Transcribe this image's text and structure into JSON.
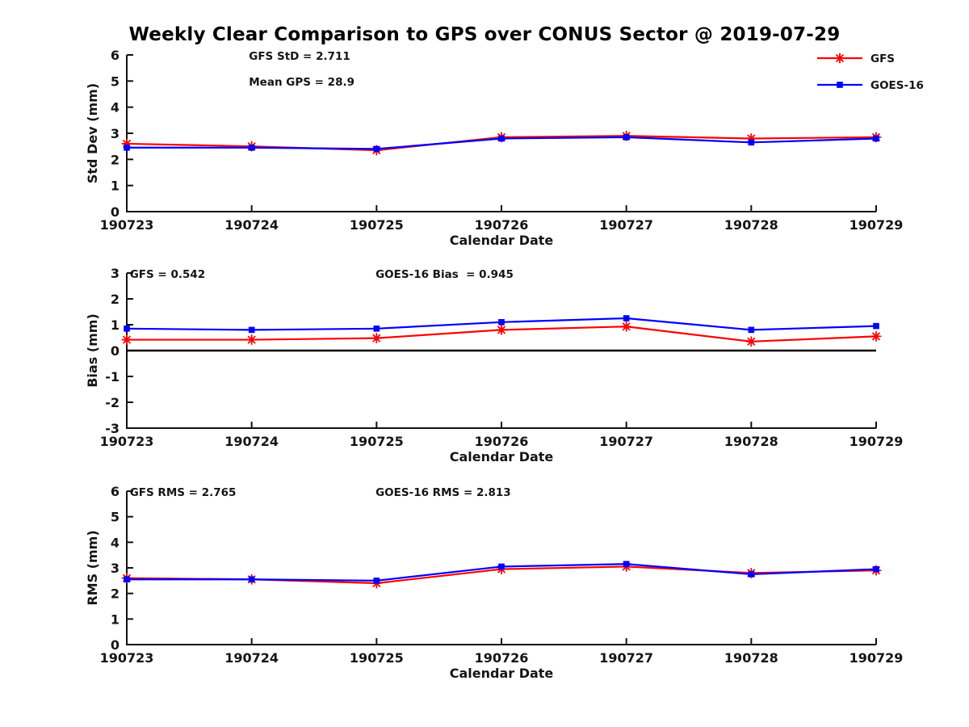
{
  "page": {
    "title": "Weekly Clear Comparison to GPS over CONUS Sector @ 2019-07-29"
  },
  "chart_data": [
    {
      "name": "std-dev",
      "type": "line",
      "ylabel": "Std Dev (mm)",
      "xlabel": "Calendar Date",
      "ylim": [
        0,
        6
      ],
      "ytick_step": 1,
      "grid": false,
      "zero_line": false,
      "legend": true,
      "legend_position": "top-right-outside",
      "categories": [
        "190723",
        "190724",
        "190725",
        "190726",
        "190727",
        "190728",
        "190729"
      ],
      "series": [
        {
          "name": "GFS",
          "color": "#ff0000",
          "marker": "asterisk",
          "values": [
            2.6,
            2.5,
            2.35,
            2.85,
            2.9,
            2.8,
            2.85
          ]
        },
        {
          "name": "GOES-16",
          "color": "#0000ff",
          "marker": "square",
          "values": [
            2.45,
            2.45,
            2.4,
            2.8,
            2.85,
            2.65,
            2.8
          ]
        }
      ],
      "annotations": [
        {
          "text": "GFS StD = 2.711",
          "x_frac": 0.163,
          "row": 0
        },
        {
          "text": "Mean GPS = 28.9",
          "x_frac": 0.163,
          "row": 1
        }
      ]
    },
    {
      "name": "bias",
      "type": "line",
      "ylabel": "Bias (mm)",
      "xlabel": "Calendar Date",
      "ylim": [
        -3,
        3
      ],
      "ytick_step": 1,
      "grid": false,
      "zero_line": true,
      "legend": false,
      "categories": [
        "190723",
        "190724",
        "190725",
        "190726",
        "190727",
        "190728",
        "190729"
      ],
      "series": [
        {
          "name": "GFS",
          "color": "#ff0000",
          "marker": "asterisk",
          "values": [
            0.42,
            0.42,
            0.48,
            0.8,
            0.93,
            0.35,
            0.55
          ]
        },
        {
          "name": "GOES-16",
          "color": "#0000ff",
          "marker": "square",
          "values": [
            0.85,
            0.8,
            0.85,
            1.1,
            1.25,
            0.8,
            0.95
          ]
        }
      ],
      "annotations": [
        {
          "text": "GFS = 0.542",
          "x_frac": 0.004,
          "row": 0
        },
        {
          "text": "GOES-16 Bias  = 0.945",
          "x_frac": 0.332,
          "row": 0
        }
      ]
    },
    {
      "name": "rms",
      "type": "line",
      "ylabel": "RMS (mm)",
      "xlabel": "Calendar Date",
      "ylim": [
        0,
        6
      ],
      "ytick_step": 1,
      "grid": false,
      "zero_line": false,
      "legend": false,
      "categories": [
        "190723",
        "190724",
        "190725",
        "190726",
        "190727",
        "190728",
        "190729"
      ],
      "series": [
        {
          "name": "GFS",
          "color": "#ff0000",
          "marker": "asterisk",
          "values": [
            2.6,
            2.55,
            2.4,
            2.95,
            3.05,
            2.8,
            2.9
          ]
        },
        {
          "name": "GOES-16",
          "color": "#0000ff",
          "marker": "square",
          "values": [
            2.55,
            2.55,
            2.5,
            3.05,
            3.15,
            2.75,
            2.95
          ]
        }
      ],
      "annotations": [
        {
          "text": "GFS RMS = 2.765",
          "x_frac": 0.004,
          "row": 0
        },
        {
          "text": "GOES-16 RMS = 2.813",
          "x_frac": 0.332,
          "row": 0
        }
      ]
    }
  ],
  "colors": {
    "gfs": "#ff0000",
    "goes16": "#0000ff",
    "axis": "#111111",
    "text": "#151515"
  }
}
